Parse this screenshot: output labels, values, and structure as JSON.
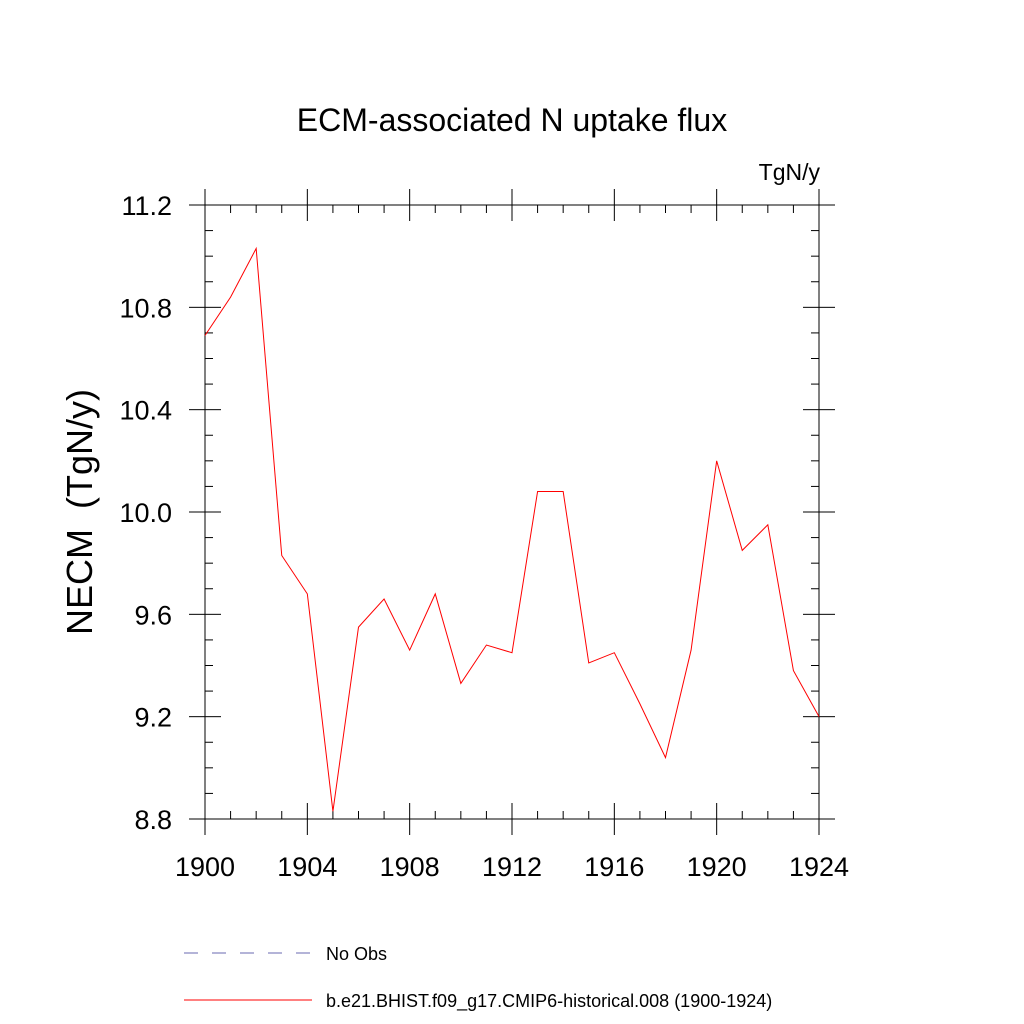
{
  "chart_data": {
    "type": "line",
    "title": "ECM-associated N uptake flux",
    "units_label": "TgN/y",
    "ylabel": "NECM  (TgN/y)",
    "xlabel": "",
    "xlim": [
      1900,
      1924
    ],
    "ylim": [
      8.8,
      11.2
    ],
    "x_ticks": [
      1900,
      1904,
      1908,
      1912,
      1916,
      1920,
      1924
    ],
    "x_tick_labels": [
      "1900",
      "1904",
      "1908",
      "1912",
      "1916",
      "1920",
      "1924"
    ],
    "y_ticks": [
      8.8,
      9.2,
      9.6,
      10.0,
      10.4,
      10.8,
      11.2
    ],
    "y_tick_labels": [
      "8.8",
      "9.2",
      "9.6",
      "10.0",
      "10.4",
      "10.8",
      "11.2"
    ],
    "grid": false,
    "legend_position": "bottom",
    "series": [
      {
        "name": "b.e21.BHIST.f09_g17.CMIP6-historical.008 (1900-1924)",
        "color": "#ff0000",
        "style": "solid",
        "x": [
          1900,
          1901,
          1902,
          1903,
          1904,
          1905,
          1906,
          1907,
          1908,
          1909,
          1910,
          1911,
          1912,
          1913,
          1914,
          1915,
          1916,
          1917,
          1918,
          1919,
          1920,
          1921,
          1922,
          1923,
          1924
        ],
        "y": [
          10.69,
          10.84,
          11.03,
          9.83,
          9.68,
          8.83,
          9.55,
          9.66,
          9.46,
          9.68,
          9.33,
          9.48,
          9.45,
          10.08,
          10.08,
          9.41,
          9.45,
          9.25,
          9.04,
          9.46,
          10.2,
          9.85,
          9.95,
          9.38,
          9.2
        ]
      },
      {
        "name": "No Obs",
        "color": "#6a6ab0",
        "style": "dashed",
        "x": [],
        "y": []
      }
    ]
  }
}
